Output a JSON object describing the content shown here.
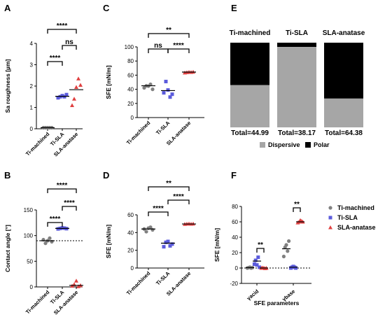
{
  "chart_data": [
    {
      "panel": "A",
      "type": "scatter",
      "ylabel": "Sa roughness [µm]",
      "ylim": [
        0,
        4
      ],
      "yticks": [
        0,
        1,
        2,
        3,
        4
      ],
      "categories": [
        "Ti-machined",
        "Ti-SLA",
        "SLA-anatase"
      ],
      "points": [
        [
          0.05,
          0.05,
          0.05,
          0.05,
          0.05
        ],
        [
          1.45,
          1.5,
          1.55,
          1.5,
          1.6
        ],
        [
          1.1,
          1.4,
          1.95,
          2.35,
          2.05
        ]
      ],
      "means": [
        0.05,
        1.52,
        1.83
      ],
      "brackets": [
        {
          "from": 0,
          "to": 1,
          "label": "****"
        },
        {
          "from": 0,
          "to": 2,
          "label": "****"
        },
        {
          "from": 1,
          "to": 2,
          "label": "ns"
        }
      ]
    },
    {
      "panel": "C",
      "type": "scatter",
      "ylabel": "SFE [mN/m]",
      "ylim": [
        0,
        100
      ],
      "yticks": [
        0,
        20,
        40,
        60,
        80,
        100
      ],
      "categories": [
        "Ti-machined",
        "Ti-SLA",
        "SLA-anatase"
      ],
      "points": [
        [
          42,
          45,
          44.5,
          47,
          40
        ],
        [
          35,
          51,
          39,
          29,
          33
        ],
        [
          63.5,
          64,
          64.5,
          64.2,
          64.6
        ]
      ],
      "means": [
        44.99,
        38.17,
        64.38
      ],
      "brackets": [
        {
          "from": 0,
          "to": 1,
          "label": "ns"
        },
        {
          "from": 1,
          "to": 2,
          "label": "****"
        },
        {
          "from": 0,
          "to": 2,
          "label": "**"
        }
      ]
    },
    {
      "panel": "E",
      "type": "bar",
      "categories": [
        "Ti-machined",
        "Ti-SLA",
        "SLA-anatase"
      ],
      "series": [
        {
          "name": "Dispersive",
          "values": [
            0.5,
            0.95,
            0.34
          ],
          "color": "#a6a6a6"
        },
        {
          "name": "Polar",
          "values": [
            0.5,
            0.05,
            0.66
          ],
          "color": "#000000"
        }
      ],
      "totals": [
        "Total=44.99",
        "Total=38.17",
        "Total=64.38"
      ]
    },
    {
      "panel": "B",
      "type": "scatter",
      "ylabel": "Contact angle [°]",
      "ylim": [
        0,
        150
      ],
      "yticks": [
        0,
        50,
        100,
        150
      ],
      "refline": 90,
      "categories": [
        "Ti-machined",
        "Ti-SLA",
        "SLA-anatase"
      ],
      "points": [
        [
          92,
          85,
          90,
          95,
          88
        ],
        [
          113,
          114,
          115,
          114.5,
          113.5
        ],
        [
          2,
          5,
          12,
          1,
          3
        ]
      ],
      "means": [
        90,
        114,
        3
      ],
      "brackets": [
        {
          "from": 0,
          "to": 1,
          "label": "****"
        },
        {
          "from": 1,
          "to": 2,
          "label": "****"
        },
        {
          "from": 0,
          "to": 2,
          "label": "****"
        }
      ]
    },
    {
      "panel": "D",
      "type": "scatter",
      "ylabel": "SFE [mN/m]",
      "ylim": [
        0,
        60
      ],
      "yticks": [
        0,
        20,
        40,
        60
      ],
      "categories": [
        "Ti-machined",
        "Ti-SLA",
        "SLA-anatase"
      ],
      "points": [
        [
          44,
          41,
          45,
          46,
          43
        ],
        [
          24,
          29,
          30,
          25,
          27
        ],
        [
          49.5,
          49.8,
          50,
          49.7,
          49.9
        ]
      ],
      "means": [
        44,
        28,
        49.7
      ],
      "brackets": [
        {
          "from": 0,
          "to": 1,
          "label": "****"
        },
        {
          "from": 1,
          "to": 2,
          "label": "****"
        },
        {
          "from": 0,
          "to": 2,
          "label": "**"
        }
      ]
    },
    {
      "panel": "F",
      "type": "scatter",
      "xlabel": "SFE parameters",
      "ylabel": "SFE [mN/m]",
      "ylim": [
        -20,
        80
      ],
      "yticks": [
        -20,
        0,
        20,
        40,
        60,
        80
      ],
      "groups": [
        "γacid",
        "γbase"
      ],
      "series": [
        {
          "name": "Ti-machined",
          "color": "#808080",
          "points": [
            [
              0,
              0.5,
              1,
              0,
              0.5
            ],
            [
              15,
              27,
              30,
              22,
              35
            ]
          ],
          "means": [
            0.5,
            25
          ]
        },
        {
          "name": "Ti-SLA",
          "color": "#5b5bdc",
          "points": [
            [
              5,
              10,
              4,
              14,
              1
            ],
            [
              0,
              1,
              2,
              1,
              0
            ]
          ],
          "means": [
            9,
            1
          ]
        },
        {
          "name": "SLA-anatase",
          "color": "#e04040",
          "points": [
            [
              0,
              0.5,
              0,
              -0.5,
              0
            ],
            [
              59,
              60,
              62,
              61,
              60
            ]
          ],
          "means": [
            0,
            60
          ]
        }
      ],
      "brackets": [
        {
          "group": 0,
          "label": "**"
        },
        {
          "group": 1,
          "label": "**"
        }
      ]
    }
  ],
  "labels": {
    "panelA": "A",
    "panelB": "B",
    "panelC": "C",
    "panelD": "D",
    "panelE": "E",
    "panelF": "F",
    "legendE": [
      "Dispersive",
      "Polar"
    ]
  },
  "colors": {
    "machined": "#808080",
    "sla": "#5b5bdc",
    "anatase": "#e04040"
  }
}
